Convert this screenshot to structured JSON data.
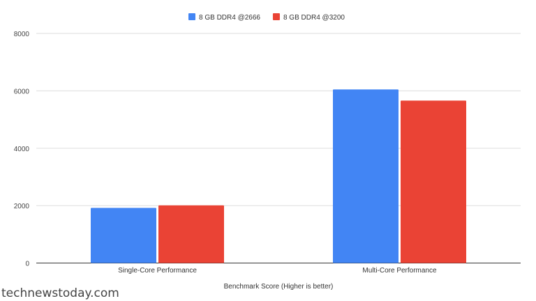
{
  "chart_data": {
    "type": "bar",
    "title": "",
    "xlabel": "Benchmark Score (Higher is better)",
    "ylabel": "",
    "categories": [
      "Single-Core Performance",
      "Multi-Core Performance"
    ],
    "series": [
      {
        "name": "8 GB DDR4 @2666",
        "color": "#4285f4",
        "values": [
          1920,
          6050
        ]
      },
      {
        "name": "8 GB DDR4 @3200",
        "color": "#ea4335",
        "values": [
          2010,
          5660
        ]
      }
    ],
    "ylim": [
      0,
      8000
    ],
    "yticks": [
      0,
      2000,
      4000,
      6000,
      8000
    ],
    "grid": true,
    "legend": "top"
  },
  "watermark": "technewstoday.com"
}
